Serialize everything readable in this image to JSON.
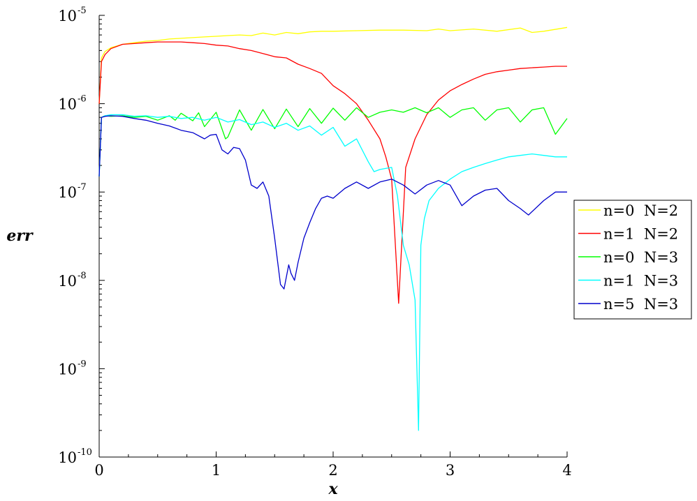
{
  "chart_data": {
    "type": "line",
    "xlabel": "x",
    "ylabel": "err",
    "xlim": [
      0,
      4
    ],
    "ylim": [
      1e-10,
      1e-05
    ],
    "yscale": "log",
    "grid": false,
    "legend_position": "right",
    "x_ticks": [
      {
        "value": 0,
        "label": "0"
      },
      {
        "value": 1,
        "label": "1"
      },
      {
        "value": 2,
        "label": "2"
      },
      {
        "value": 3,
        "label": "3"
      },
      {
        "value": 4,
        "label": "4"
      }
    ],
    "y_ticks": [
      {
        "value": 1e-05,
        "base": "10",
        "exp": "-5"
      },
      {
        "value": 1e-06,
        "base": "10",
        "exp": "-6"
      },
      {
        "value": 1e-07,
        "base": "10",
        "exp": "-7"
      },
      {
        "value": 1e-08,
        "base": "10",
        "exp": "-8"
      },
      {
        "value": 1e-09,
        "base": "10",
        "exp": "-9"
      },
      {
        "value": 1e-10,
        "base": "10",
        "exp": "-10"
      }
    ],
    "series": [
      {
        "name": "n=0  N=2",
        "color": "#ffff00",
        "x": [
          0.0,
          0.02,
          0.05,
          0.1,
          0.2,
          0.3,
          0.4,
          0.5,
          0.6,
          0.7,
          0.8,
          0.9,
          1.0,
          1.1,
          1.2,
          1.3,
          1.4,
          1.5,
          1.6,
          1.7,
          1.8,
          1.9,
          2.0,
          2.2,
          2.4,
          2.6,
          2.8,
          2.9,
          3.0,
          3.2,
          3.4,
          3.6,
          3.7,
          3.8,
          4.0
        ],
        "y": [
          1e-06,
          3.3e-06,
          3.9e-06,
          4.3e-06,
          4.7e-06,
          4.9e-06,
          5.1e-06,
          5.2e-06,
          5.4e-06,
          5.5e-06,
          5.6e-06,
          5.7e-06,
          5.8e-06,
          5.9e-06,
          6e-06,
          5.9e-06,
          6.3e-06,
          6e-06,
          6.4e-06,
          6.2e-06,
          6.5e-06,
          6.6e-06,
          6.6e-06,
          6.7e-06,
          6.8e-06,
          6.8e-06,
          6.7e-06,
          7e-06,
          6.7e-06,
          7e-06,
          6.6e-06,
          7.2e-06,
          6.4e-06,
          6.6e-06,
          7.3e-06
        ]
      },
      {
        "name": "n=1  N=2",
        "color": "#ff0000",
        "x": [
          0.0,
          0.02,
          0.05,
          0.1,
          0.2,
          0.3,
          0.4,
          0.5,
          0.6,
          0.7,
          0.8,
          0.9,
          1.0,
          1.1,
          1.2,
          1.3,
          1.4,
          1.5,
          1.6,
          1.7,
          1.8,
          1.9,
          2.0,
          2.1,
          2.2,
          2.3,
          2.4,
          2.45,
          2.5,
          2.56,
          2.62,
          2.7,
          2.8,
          2.9,
          3.0,
          3.1,
          3.2,
          3.3,
          3.4,
          3.5,
          3.6,
          3.7,
          3.8,
          3.9,
          4.0
        ],
        "y": [
          1e-06,
          3e-06,
          3.6e-06,
          4.2e-06,
          4.7e-06,
          4.8e-06,
          4.9e-06,
          5e-06,
          5e-06,
          5e-06,
          4.9e-06,
          4.8e-06,
          4.6e-06,
          4.5e-06,
          4.2e-06,
          4e-06,
          3.7e-06,
          3.4e-06,
          3.3e-06,
          2.8e-06,
          2.5e-06,
          2.2e-06,
          1.6e-06,
          1.3e-06,
          1e-06,
          6.5e-07,
          4e-07,
          2.5e-07,
          1.4e-07,
          5.5e-09,
          1.9e-07,
          4e-07,
          7.5e-07,
          1.1e-06,
          1.4e-06,
          1.65e-06,
          1.9e-06,
          2.15e-06,
          2.3e-06,
          2.4e-06,
          2.5e-06,
          2.55e-06,
          2.6e-06,
          2.65e-06,
          2.65e-06
        ]
      },
      {
        "name": "n=0  N=3",
        "color": "#00ff00",
        "x": [
          0.0,
          0.02,
          0.05,
          0.1,
          0.2,
          0.3,
          0.4,
          0.5,
          0.6,
          0.65,
          0.7,
          0.8,
          0.85,
          0.9,
          1.0,
          1.08,
          1.1,
          1.2,
          1.3,
          1.4,
          1.5,
          1.6,
          1.7,
          1.8,
          1.9,
          2.0,
          2.1,
          2.2,
          2.3,
          2.4,
          2.5,
          2.6,
          2.7,
          2.8,
          2.9,
          3.0,
          3.1,
          3.2,
          3.3,
          3.4,
          3.5,
          3.6,
          3.7,
          3.8,
          3.9,
          4.0
        ],
        "y": [
          1.5e-07,
          7e-07,
          7.3e-07,
          7.2e-07,
          7.3e-07,
          7e-07,
          7.2e-07,
          6.5e-07,
          7.3e-07,
          6.5e-07,
          7.8e-07,
          6.4e-07,
          7.9e-07,
          5.5e-07,
          8e-07,
          4e-07,
          4.2e-07,
          8.5e-07,
          5e-07,
          8.6e-07,
          5.2e-07,
          8.7e-07,
          5.5e-07,
          8.8e-07,
          6e-07,
          8.9e-07,
          6.5e-07,
          9e-07,
          7e-07,
          8e-07,
          8.5e-07,
          8e-07,
          9e-07,
          7.9e-07,
          9e-07,
          7e-07,
          8.5e-07,
          9e-07,
          6.5e-07,
          8.5e-07,
          9e-07,
          6.2e-07,
          8.5e-07,
          9e-07,
          4.5e-07,
          6.8e-07
        ]
      },
      {
        "name": "n=1  N=3",
        "color": "#00ffff",
        "x": [
          0.0,
          0.02,
          0.05,
          0.1,
          0.2,
          0.3,
          0.4,
          0.5,
          0.6,
          0.7,
          0.8,
          0.9,
          1.0,
          1.1,
          1.2,
          1.3,
          1.4,
          1.5,
          1.6,
          1.7,
          1.8,
          1.9,
          2.0,
          2.1,
          2.2,
          2.3,
          2.35,
          2.4,
          2.5,
          2.55,
          2.6,
          2.65,
          2.7,
          2.73,
          2.75,
          2.78,
          2.82,
          2.9,
          3.0,
          3.1,
          3.2,
          3.3,
          3.4,
          3.5,
          3.6,
          3.7,
          3.8,
          3.9,
          4.0
        ],
        "y": [
          1.5e-07,
          7e-07,
          7.3e-07,
          7.5e-07,
          7.5e-07,
          7.2e-07,
          7.3e-07,
          7e-07,
          7.2e-07,
          6.8e-07,
          7e-07,
          6.5e-07,
          7e-07,
          6.2e-07,
          6.6e-07,
          5.8e-07,
          6.2e-07,
          5.4e-07,
          6e-07,
          5e-07,
          5.6e-07,
          4.4e-07,
          5.4e-07,
          3.3e-07,
          4e-07,
          2.2e-07,
          1.7e-07,
          1.8e-07,
          1.9e-07,
          9e-08,
          2.5e-08,
          1.5e-08,
          6e-09,
          2e-10,
          2.5e-08,
          5e-08,
          8e-08,
          1.1e-07,
          1.4e-07,
          1.7e-07,
          1.9e-07,
          2.1e-07,
          2.3e-07,
          2.5e-07,
          2.6e-07,
          2.7e-07,
          2.6e-07,
          2.5e-07,
          2.5e-07
        ]
      },
      {
        "name": "n=5  N=3",
        "color": "#0000cc",
        "x": [
          0.0,
          0.02,
          0.05,
          0.1,
          0.2,
          0.3,
          0.4,
          0.5,
          0.6,
          0.7,
          0.8,
          0.9,
          0.95,
          1.0,
          1.05,
          1.1,
          1.15,
          1.2,
          1.25,
          1.3,
          1.35,
          1.4,
          1.45,
          1.5,
          1.55,
          1.58,
          1.62,
          1.64,
          1.67,
          1.7,
          1.75,
          1.8,
          1.85,
          1.9,
          1.95,
          2.0,
          2.1,
          2.2,
          2.3,
          2.4,
          2.5,
          2.6,
          2.7,
          2.8,
          2.9,
          3.0,
          3.1,
          3.2,
          3.3,
          3.4,
          3.5,
          3.6,
          3.67,
          3.8,
          3.9,
          4.0
        ],
        "y": [
          1.5e-07,
          7e-07,
          7.2e-07,
          7.3e-07,
          7.2e-07,
          6.8e-07,
          6.5e-07,
          6e-07,
          5.6e-07,
          5e-07,
          4.7e-07,
          4e-07,
          4.4e-07,
          4.5e-07,
          3e-07,
          2.7e-07,
          3.2e-07,
          3.1e-07,
          2.3e-07,
          1.2e-07,
          1.1e-07,
          1.3e-07,
          9e-08,
          3e-08,
          9e-09,
          8e-09,
          1.5e-08,
          1.2e-08,
          1e-08,
          1.6e-08,
          3e-08,
          4.5e-08,
          6.5e-08,
          8.5e-08,
          9e-08,
          8.5e-08,
          1.1e-07,
          1.3e-07,
          1.1e-07,
          1.3e-07,
          1.4e-07,
          1.2e-07,
          9.5e-08,
          1.2e-07,
          1.35e-07,
          1.2e-07,
          7e-08,
          9e-08,
          1.05e-07,
          1.1e-07,
          8e-08,
          6.5e-08,
          5.5e-08,
          8e-08,
          1e-07,
          1e-07
        ]
      }
    ]
  }
}
